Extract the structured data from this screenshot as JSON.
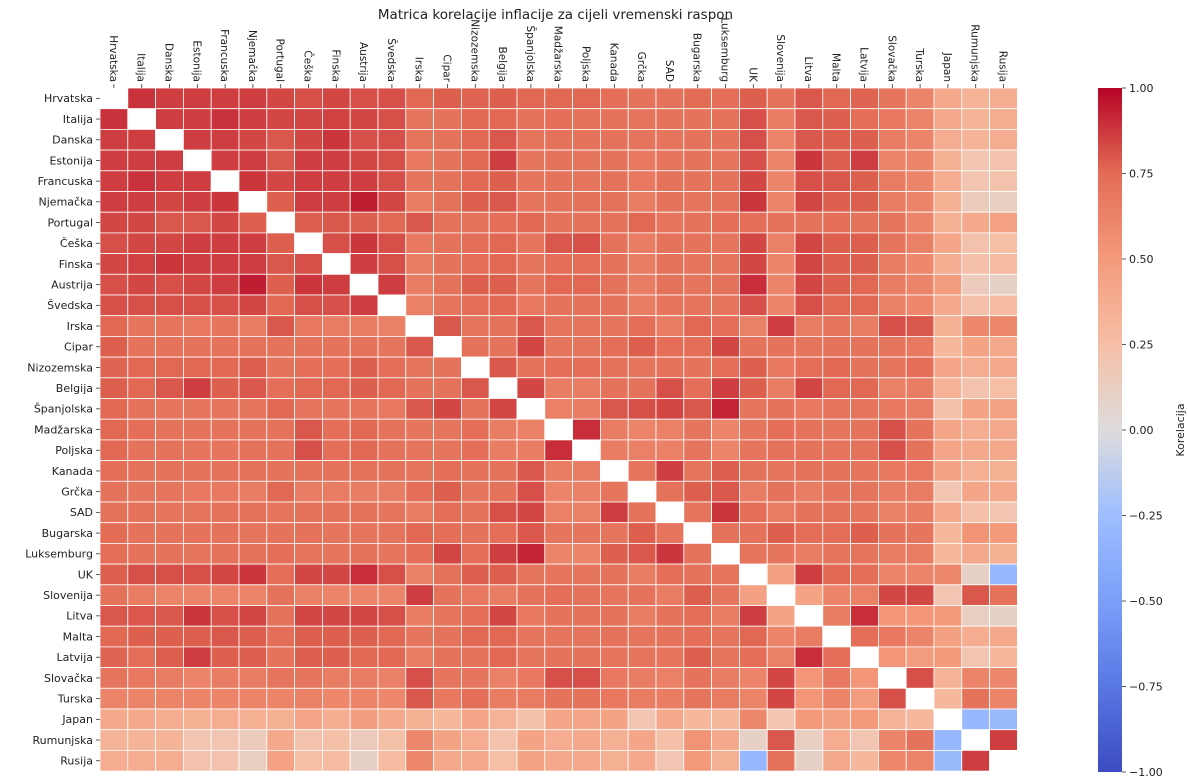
{
  "chart_data": {
    "type": "heatmap",
    "title": "Matrica korelacije inflacije za cijeli vremenski raspon",
    "colorbar": {
      "label": "Korelacija",
      "range": [
        -1.0,
        1.0
      ],
      "ticks": [
        "1.00",
        "0.75",
        "0.50",
        "0.25",
        "0.00",
        "−0.25",
        "−0.50",
        "−0.75",
        "−1.00"
      ],
      "colormap": "coolwarm",
      "position": "right"
    },
    "diagonal": "masked",
    "labels": [
      "Hrvatska",
      "Italija",
      "Danska",
      "Estonija",
      "Francuska",
      "Njemačka",
      "Portugal",
      "Češka",
      "Finska",
      "Austrija",
      "Švedska",
      "Irska",
      "Cipar",
      "Nizozemska",
      "Belgija",
      "Španjolska",
      "Madžarska",
      "Poljska",
      "Kanada",
      "Grčka",
      "SAD",
      "Bugarska",
      "Luksemburg",
      "UK",
      "Slovenija",
      "Litva",
      "Malta",
      "Latvija",
      "Slovačka",
      "Turska",
      "Japan",
      "Rumunjska",
      "Rusija"
    ],
    "matrix": [
      [
        null,
        0.89,
        0.86,
        0.86,
        0.86,
        0.86,
        0.84,
        0.82,
        0.84,
        0.82,
        0.82,
        0.76,
        0.78,
        0.77,
        0.78,
        0.76,
        0.76,
        0.76,
        0.74,
        0.72,
        0.72,
        0.75,
        0.74,
        0.78,
        0.72,
        0.8,
        0.76,
        0.77,
        0.7,
        0.62,
        0.4,
        0.33,
        0.38
      ],
      [
        0.89,
        null,
        0.86,
        0.86,
        0.89,
        0.86,
        0.84,
        0.84,
        0.85,
        0.84,
        0.82,
        0.7,
        0.72,
        0.76,
        0.76,
        0.72,
        0.74,
        0.72,
        0.72,
        0.7,
        0.72,
        0.72,
        0.72,
        0.82,
        0.66,
        0.8,
        0.78,
        0.74,
        0.68,
        0.62,
        0.4,
        0.33,
        0.38
      ],
      [
        0.86,
        0.86,
        null,
        0.86,
        0.86,
        0.84,
        0.8,
        0.84,
        0.88,
        0.82,
        0.82,
        0.7,
        0.72,
        0.76,
        0.8,
        0.7,
        0.72,
        0.72,
        0.72,
        0.7,
        0.7,
        0.72,
        0.72,
        0.82,
        0.62,
        0.8,
        0.78,
        0.78,
        0.66,
        0.62,
        0.38,
        0.33,
        0.38
      ],
      [
        0.86,
        0.86,
        0.86,
        null,
        0.86,
        0.86,
        0.8,
        0.86,
        0.86,
        0.84,
        0.82,
        0.68,
        0.72,
        0.76,
        0.86,
        0.7,
        0.72,
        0.7,
        0.72,
        0.68,
        0.7,
        0.72,
        0.7,
        0.82,
        0.62,
        0.88,
        0.78,
        0.86,
        0.62,
        0.62,
        0.36,
        0.2,
        0.22
      ],
      [
        0.86,
        0.89,
        0.86,
        0.86,
        null,
        0.88,
        0.84,
        0.86,
        0.86,
        0.86,
        0.82,
        0.7,
        0.72,
        0.76,
        0.78,
        0.7,
        0.72,
        0.7,
        0.72,
        0.68,
        0.72,
        0.72,
        0.72,
        0.84,
        0.62,
        0.82,
        0.8,
        0.78,
        0.66,
        0.62,
        0.38,
        0.2,
        0.22
      ],
      [
        0.86,
        0.86,
        0.84,
        0.86,
        0.88,
        null,
        0.78,
        0.86,
        0.86,
        0.94,
        0.84,
        0.66,
        0.72,
        0.78,
        0.8,
        0.7,
        0.72,
        0.72,
        0.72,
        0.66,
        0.72,
        0.7,
        0.72,
        0.88,
        0.62,
        0.84,
        0.78,
        0.78,
        0.66,
        0.62,
        0.36,
        0.15,
        0.12
      ],
      [
        0.84,
        0.84,
        0.8,
        0.8,
        0.84,
        0.78,
        null,
        0.78,
        0.8,
        0.78,
        0.76,
        0.8,
        0.72,
        0.72,
        0.74,
        0.76,
        0.72,
        0.72,
        0.72,
        0.76,
        0.7,
        0.72,
        0.74,
        0.74,
        0.72,
        0.72,
        0.74,
        0.72,
        0.7,
        0.62,
        0.36,
        0.4,
        0.45
      ],
      [
        0.82,
        0.84,
        0.84,
        0.86,
        0.86,
        0.86,
        0.78,
        null,
        0.82,
        0.88,
        0.82,
        0.68,
        0.72,
        0.74,
        0.76,
        0.7,
        0.8,
        0.82,
        0.72,
        0.66,
        0.72,
        0.72,
        0.7,
        0.84,
        0.64,
        0.84,
        0.78,
        0.78,
        0.7,
        0.64,
        0.42,
        0.22,
        0.26
      ],
      [
        0.84,
        0.85,
        0.88,
        0.86,
        0.86,
        0.86,
        0.8,
        0.82,
        null,
        0.86,
        0.82,
        0.66,
        0.72,
        0.74,
        0.76,
        0.7,
        0.74,
        0.74,
        0.72,
        0.66,
        0.72,
        0.7,
        0.7,
        0.84,
        0.62,
        0.84,
        0.78,
        0.78,
        0.66,
        0.6,
        0.38,
        0.24,
        0.28
      ],
      [
        0.82,
        0.84,
        0.82,
        0.84,
        0.86,
        0.94,
        0.78,
        0.88,
        0.86,
        null,
        0.86,
        0.66,
        0.72,
        0.78,
        0.78,
        0.7,
        0.76,
        0.76,
        0.72,
        0.66,
        0.72,
        0.7,
        0.72,
        0.9,
        0.62,
        0.84,
        0.78,
        0.76,
        0.66,
        0.62,
        0.48,
        0.15,
        0.1
      ],
      [
        0.82,
        0.82,
        0.82,
        0.82,
        0.82,
        0.84,
        0.76,
        0.82,
        0.82,
        0.86,
        null,
        0.64,
        0.7,
        0.74,
        0.76,
        0.68,
        0.72,
        0.72,
        0.72,
        0.66,
        0.7,
        0.7,
        0.7,
        0.82,
        0.62,
        0.82,
        0.76,
        0.76,
        0.64,
        0.6,
        0.4,
        0.24,
        0.28
      ],
      [
        0.76,
        0.7,
        0.7,
        0.68,
        0.7,
        0.66,
        0.8,
        0.68,
        0.66,
        0.66,
        0.64,
        null,
        0.8,
        0.7,
        0.72,
        0.8,
        0.7,
        0.7,
        0.7,
        0.74,
        0.66,
        0.76,
        0.74,
        0.64,
        0.86,
        0.66,
        0.7,
        0.66,
        0.82,
        0.8,
        0.36,
        0.6,
        0.6
      ],
      [
        0.78,
        0.72,
        0.72,
        0.72,
        0.72,
        0.72,
        0.72,
        0.72,
        0.72,
        0.72,
        0.7,
        0.8,
        null,
        0.72,
        0.72,
        0.84,
        0.7,
        0.7,
        0.74,
        0.78,
        0.74,
        0.74,
        0.84,
        0.72,
        0.72,
        0.7,
        0.72,
        0.72,
        0.7,
        0.68,
        0.3,
        0.44,
        0.4
      ],
      [
        0.77,
        0.76,
        0.76,
        0.76,
        0.76,
        0.78,
        0.72,
        0.74,
        0.74,
        0.78,
        0.74,
        0.7,
        0.72,
        null,
        0.8,
        0.72,
        0.74,
        0.74,
        0.72,
        0.7,
        0.72,
        0.72,
        0.74,
        0.78,
        0.68,
        0.74,
        0.76,
        0.72,
        0.7,
        0.74,
        0.42,
        0.38,
        0.4
      ],
      [
        0.78,
        0.76,
        0.8,
        0.86,
        0.78,
        0.8,
        0.74,
        0.76,
        0.76,
        0.78,
        0.76,
        0.72,
        0.72,
        0.8,
        null,
        0.84,
        0.66,
        0.66,
        0.72,
        0.72,
        0.82,
        0.74,
        0.86,
        0.78,
        0.66,
        0.84,
        0.76,
        0.76,
        0.64,
        0.66,
        0.34,
        0.22,
        0.26
      ],
      [
        0.76,
        0.72,
        0.7,
        0.7,
        0.7,
        0.7,
        0.76,
        0.7,
        0.7,
        0.7,
        0.68,
        0.8,
        0.84,
        0.72,
        0.84,
        null,
        0.64,
        0.66,
        0.8,
        0.82,
        0.84,
        0.8,
        0.92,
        0.7,
        0.72,
        0.68,
        0.7,
        0.7,
        0.68,
        0.66,
        0.24,
        0.44,
        0.44
      ],
      [
        0.76,
        0.74,
        0.72,
        0.72,
        0.72,
        0.72,
        0.72,
        0.8,
        0.74,
        0.76,
        0.72,
        0.7,
        0.7,
        0.74,
        0.66,
        0.64,
        null,
        0.9,
        0.66,
        0.62,
        0.64,
        0.7,
        0.62,
        0.7,
        0.74,
        0.72,
        0.7,
        0.72,
        0.82,
        0.72,
        0.42,
        0.38,
        0.4
      ],
      [
        0.76,
        0.72,
        0.72,
        0.7,
        0.7,
        0.72,
        0.72,
        0.82,
        0.74,
        0.76,
        0.72,
        0.7,
        0.7,
        0.74,
        0.66,
        0.66,
        0.9,
        null,
        0.66,
        0.64,
        0.64,
        0.7,
        0.62,
        0.7,
        0.72,
        0.72,
        0.7,
        0.72,
        0.82,
        0.72,
        0.42,
        0.4,
        0.4
      ],
      [
        0.74,
        0.72,
        0.72,
        0.72,
        0.72,
        0.72,
        0.72,
        0.72,
        0.72,
        0.72,
        0.72,
        0.7,
        0.74,
        0.72,
        0.72,
        0.8,
        0.66,
        0.66,
        null,
        0.7,
        0.86,
        0.7,
        0.78,
        0.72,
        0.7,
        0.72,
        0.72,
        0.7,
        0.68,
        0.68,
        0.44,
        0.36,
        0.36
      ],
      [
        0.72,
        0.7,
        0.7,
        0.68,
        0.68,
        0.66,
        0.76,
        0.66,
        0.66,
        0.66,
        0.66,
        0.74,
        0.78,
        0.7,
        0.72,
        0.82,
        0.62,
        0.64,
        0.7,
        null,
        0.72,
        0.78,
        0.8,
        0.66,
        0.72,
        0.66,
        0.7,
        0.7,
        0.66,
        0.66,
        0.2,
        0.42,
        0.4
      ],
      [
        0.72,
        0.72,
        0.7,
        0.7,
        0.72,
        0.72,
        0.7,
        0.72,
        0.72,
        0.72,
        0.7,
        0.66,
        0.74,
        0.72,
        0.82,
        0.84,
        0.64,
        0.64,
        0.86,
        0.72,
        null,
        0.7,
        0.88,
        0.74,
        0.66,
        0.72,
        0.72,
        0.7,
        0.64,
        0.66,
        0.4,
        0.24,
        0.2
      ],
      [
        0.75,
        0.72,
        0.72,
        0.72,
        0.72,
        0.7,
        0.72,
        0.72,
        0.7,
        0.7,
        0.7,
        0.76,
        0.74,
        0.72,
        0.74,
        0.8,
        0.7,
        0.7,
        0.7,
        0.78,
        0.7,
        null,
        0.72,
        0.72,
        0.78,
        0.74,
        0.74,
        0.78,
        0.72,
        0.7,
        0.3,
        0.54,
        0.5
      ],
      [
        0.74,
        0.72,
        0.72,
        0.7,
        0.72,
        0.72,
        0.74,
        0.7,
        0.7,
        0.72,
        0.7,
        0.74,
        0.84,
        0.74,
        0.86,
        0.92,
        0.62,
        0.62,
        0.78,
        0.8,
        0.88,
        0.72,
        null,
        0.7,
        0.7,
        0.66,
        0.7,
        0.7,
        0.66,
        0.66,
        0.3,
        0.4,
        0.36
      ],
      [
        0.78,
        0.82,
        0.82,
        0.82,
        0.84,
        0.88,
        0.74,
        0.84,
        0.84,
        0.9,
        0.82,
        0.64,
        0.72,
        0.78,
        0.78,
        0.7,
        0.7,
        0.7,
        0.72,
        0.66,
        0.74,
        0.72,
        0.7,
        null,
        0.46,
        0.86,
        0.76,
        0.74,
        0.62,
        0.62,
        0.6,
        0.1,
        -0.3
      ],
      [
        0.72,
        0.66,
        0.62,
        0.62,
        0.62,
        0.62,
        0.72,
        0.64,
        0.62,
        0.62,
        0.62,
        0.86,
        0.72,
        0.68,
        0.66,
        0.72,
        0.74,
        0.72,
        0.7,
        0.72,
        0.66,
        0.78,
        0.7,
        0.46,
        null,
        0.44,
        0.62,
        0.64,
        0.84,
        0.84,
        0.2,
        0.8,
        0.72
      ],
      [
        0.8,
        0.8,
        0.8,
        0.88,
        0.82,
        0.84,
        0.72,
        0.84,
        0.84,
        0.84,
        0.82,
        0.66,
        0.7,
        0.74,
        0.84,
        0.68,
        0.72,
        0.72,
        0.72,
        0.66,
        0.72,
        0.74,
        0.66,
        0.86,
        0.44,
        null,
        0.66,
        0.9,
        0.52,
        0.52,
        0.5,
        0.12,
        0.1
      ],
      [
        0.76,
        0.78,
        0.78,
        0.78,
        0.8,
        0.78,
        0.74,
        0.78,
        0.78,
        0.78,
        0.76,
        0.7,
        0.72,
        0.76,
        0.76,
        0.7,
        0.7,
        0.7,
        0.72,
        0.7,
        0.72,
        0.74,
        0.7,
        0.76,
        0.62,
        0.66,
        null,
        0.74,
        0.68,
        0.62,
        0.46,
        0.38,
        0.4
      ],
      [
        0.77,
        0.74,
        0.78,
        0.86,
        0.78,
        0.78,
        0.72,
        0.78,
        0.78,
        0.76,
        0.76,
        0.66,
        0.72,
        0.72,
        0.76,
        0.7,
        0.72,
        0.72,
        0.7,
        0.7,
        0.7,
        0.78,
        0.7,
        0.74,
        0.64,
        0.9,
        0.74,
        null,
        0.52,
        0.48,
        0.5,
        0.2,
        0.3
      ],
      [
        0.7,
        0.68,
        0.66,
        0.62,
        0.66,
        0.66,
        0.7,
        0.7,
        0.66,
        0.66,
        0.64,
        0.82,
        0.7,
        0.7,
        0.64,
        0.68,
        0.82,
        0.82,
        0.68,
        0.66,
        0.64,
        0.72,
        0.66,
        0.62,
        0.84,
        0.52,
        0.68,
        0.52,
        null,
        0.82,
        0.34,
        0.62,
        0.6
      ],
      [
        0.62,
        0.62,
        0.62,
        0.62,
        0.62,
        0.62,
        0.62,
        0.64,
        0.6,
        0.62,
        0.6,
        0.8,
        0.68,
        0.74,
        0.66,
        0.66,
        0.72,
        0.72,
        0.68,
        0.66,
        0.66,
        0.7,
        0.66,
        0.62,
        0.84,
        0.52,
        0.62,
        0.48,
        0.82,
        null,
        0.3,
        0.72,
        0.62
      ],
      [
        0.4,
        0.4,
        0.38,
        0.36,
        0.38,
        0.36,
        0.36,
        0.42,
        0.38,
        0.48,
        0.4,
        0.36,
        0.3,
        0.42,
        0.34,
        0.24,
        0.42,
        0.42,
        0.44,
        0.2,
        0.4,
        0.3,
        0.3,
        0.6,
        0.2,
        0.5,
        0.46,
        0.5,
        0.34,
        0.3,
        null,
        -0.3,
        -0.28
      ],
      [
        0.33,
        0.33,
        0.33,
        0.2,
        0.2,
        0.15,
        0.4,
        0.22,
        0.24,
        0.15,
        0.24,
        0.6,
        0.44,
        0.38,
        0.22,
        0.44,
        0.38,
        0.4,
        0.36,
        0.42,
        0.24,
        0.54,
        0.4,
        0.1,
        0.8,
        0.12,
        0.38,
        0.2,
        0.62,
        0.72,
        -0.3,
        null,
        0.86
      ],
      [
        0.38,
        0.38,
        0.38,
        0.22,
        0.22,
        0.12,
        0.45,
        0.26,
        0.28,
        0.1,
        0.28,
        0.6,
        0.4,
        0.4,
        0.26,
        0.44,
        0.4,
        0.4,
        0.36,
        0.4,
        0.2,
        0.5,
        0.36,
        -0.3,
        0.72,
        0.1,
        0.4,
        0.3,
        0.6,
        0.62,
        -0.28,
        0.86,
        null
      ]
    ]
  }
}
